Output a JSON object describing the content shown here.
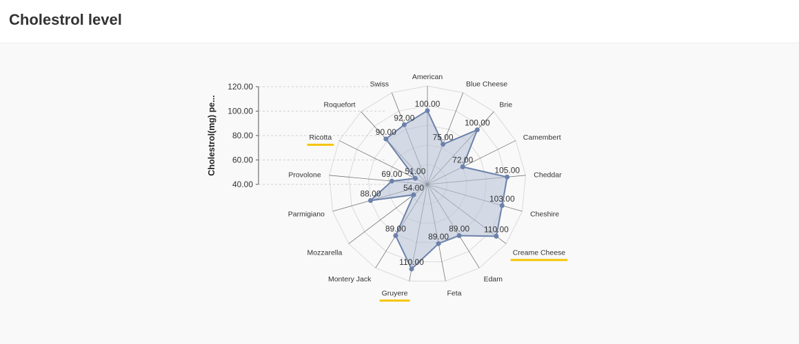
{
  "page": {
    "title": "Cholestrol level"
  },
  "chart_data": {
    "type": "radar",
    "ylabel": "Cholestrol(mg) pe...",
    "yticks": [
      "120.00",
      "100.00",
      "80.00",
      "60.00",
      "40.00"
    ],
    "ylim": [
      40,
      120
    ],
    "categories": [
      "American",
      "Blue Cheese",
      "Brie",
      "Camembert",
      "Cheddar",
      "Cheshire",
      "Creame Cheese",
      "Edam",
      "Feta",
      "Gruyere",
      "Montery Jack",
      "Mozzarella",
      "Parmigiano",
      "Provolone",
      "Ricotta",
      "Roquefort",
      "Swiss"
    ],
    "highlighted": [
      "Ricotta",
      "Creame Cheese",
      "Gruyere"
    ],
    "series": [
      {
        "values": [
          100,
          75,
          100,
          72,
          105,
          103,
          110,
          89,
          89,
          110,
          89,
          54,
          88,
          69,
          51,
          90,
          92
        ],
        "labels": [
          "100.00",
          "75.00",
          "100.00",
          "72.00",
          "105.00",
          "103.00",
          "110.00",
          "89.00",
          "89.00",
          "110.00",
          "89.00",
          "54.00",
          "88.00",
          "69.00",
          "51.00",
          "90.00",
          "92.00"
        ]
      }
    ],
    "colors": {
      "fill": "#b5bfd6",
      "line": "#6b81aa",
      "highlight": "#f5c400",
      "grid": "#d9d9d9",
      "spoke": "#555555"
    }
  }
}
